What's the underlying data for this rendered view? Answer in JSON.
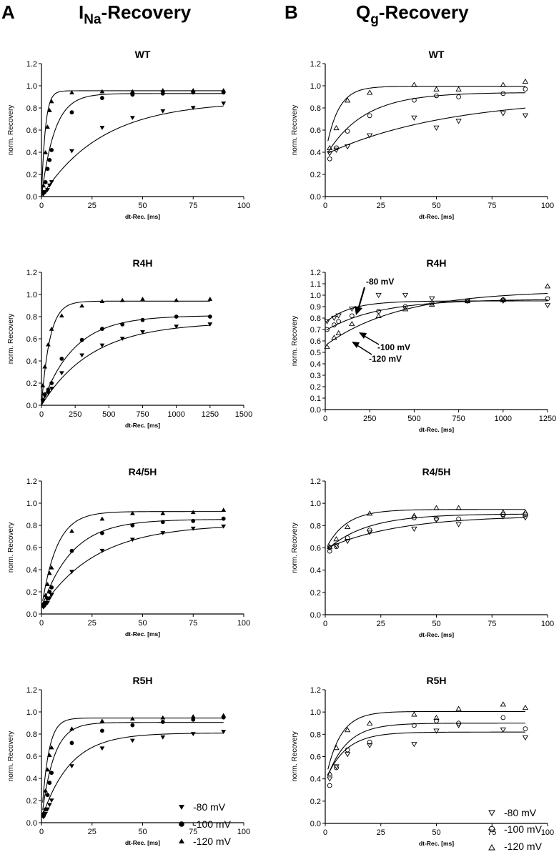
{
  "panels": {
    "A": {
      "letter": "A",
      "title_main": "I",
      "title_sub": "Na",
      "title_rest": "-Recovery"
    },
    "B": {
      "letter": "B",
      "title_main": "Q",
      "title_sub": "g",
      "title_rest": "-Recovery"
    }
  },
  "legend": {
    "left": [
      {
        "label": "-80 mV",
        "marker": "tri-down-filled"
      },
      {
        "label": "-100 mV",
        "marker": "circle-filled"
      },
      {
        "label": "-120 mV",
        "marker": "tri-up-filled"
      }
    ],
    "right": [
      {
        "label": "-80 mV",
        "marker": "tri-down-open"
      },
      {
        "label": "-100 mV",
        "marker": "circle-open"
      },
      {
        "label": "-120 mV",
        "marker": "tri-up-open"
      }
    ]
  },
  "annotations": [
    {
      "label": "-80 mV"
    },
    {
      "label": "-100 mV"
    },
    {
      "label": "-120 mV"
    }
  ],
  "chart_data": [
    {
      "id": "A-WT",
      "type": "scatter",
      "title": "WT",
      "xlabel": "dt-Rec.  [ms]",
      "ylabel": "norm. Recovery",
      "xlim": [
        0,
        100
      ],
      "ylim": [
        0,
        1.2
      ],
      "xticks": [
        0,
        25,
        50,
        75,
        100
      ],
      "yticks": [
        0.0,
        0.2,
        0.4,
        0.6,
        0.8,
        1.0,
        1.2
      ],
      "filled": true,
      "series": [
        {
          "name": "-80 mV",
          "marker": "tri-down",
          "x": [
            1,
            2,
            3,
            4,
            5,
            15,
            30,
            45,
            60,
            75,
            90
          ],
          "y": [
            0.02,
            0.04,
            0.06,
            0.1,
            0.13,
            0.41,
            0.62,
            0.71,
            0.77,
            0.8,
            0.84
          ],
          "fit": {
            "a": 0.86,
            "b": 0.0,
            "tau": 30
          }
        },
        {
          "name": "-100 mV",
          "marker": "circle",
          "x": [
            1,
            2,
            3,
            4,
            5,
            15,
            30,
            45,
            60,
            75,
            90
          ],
          "y": [
            0.04,
            0.13,
            0.25,
            0.33,
            0.42,
            0.76,
            0.89,
            0.92,
            0.93,
            0.94,
            0.94
          ],
          "fit": {
            "a": 0.93,
            "b": 0.0,
            "tau": 6.5
          }
        },
        {
          "name": "-120 mV",
          "marker": "tri-up",
          "x": [
            1,
            2,
            3,
            4,
            5,
            15,
            30,
            45,
            60,
            75,
            90
          ],
          "y": [
            0.1,
            0.4,
            0.63,
            0.78,
            0.86,
            0.94,
            0.95,
            0.95,
            0.96,
            0.96,
            0.96
          ],
          "fit": {
            "a": 0.955,
            "b": 0.0,
            "tau": 1.9
          }
        }
      ]
    },
    {
      "id": "B-WT",
      "type": "scatter",
      "title": "WT",
      "xlabel": "dt-Rec.  [ms]",
      "ylabel": "norm. Recovery",
      "xlim": [
        0,
        100
      ],
      "ylim": [
        0,
        1.2
      ],
      "xticks": [
        0,
        25,
        50,
        75,
        100
      ],
      "yticks": [
        0.0,
        0.2,
        0.4,
        0.6,
        0.8,
        1.0,
        1.2
      ],
      "filled": false,
      "series": [
        {
          "name": "-80 mV",
          "marker": "tri-down",
          "x": [
            2,
            5,
            10,
            20,
            40,
            50,
            60,
            80,
            90
          ],
          "y": [
            0.39,
            0.42,
            0.45,
            0.55,
            0.71,
            0.62,
            0.68,
            0.75,
            0.73
          ],
          "fit": {
            "a": 0.9,
            "b": 0.38,
            "tau": 55
          }
        },
        {
          "name": "-100 mV",
          "marker": "circle",
          "x": [
            2,
            5,
            10,
            20,
            40,
            50,
            60,
            80,
            90
          ],
          "y": [
            0.34,
            0.44,
            0.59,
            0.73,
            0.87,
            0.91,
            0.9,
            0.93,
            0.97
          ],
          "fit": {
            "a": 0.94,
            "b": 0.36,
            "tau": 17
          }
        },
        {
          "name": "-120 mV",
          "marker": "tri-up",
          "x": [
            2,
            5,
            10,
            20,
            40,
            50,
            60,
            80,
            90
          ],
          "y": [
            0.44,
            0.62,
            0.87,
            0.94,
            1.01,
            0.97,
            0.97,
            1.01,
            1.04
          ],
          "fit": {
            "a": 0.995,
            "b": 0.38,
            "tau": 5.5
          }
        }
      ]
    },
    {
      "id": "A-R4H",
      "type": "scatter",
      "title": "R4H",
      "xlabel": "dt-Rec.  [ms]",
      "ylabel": "norm. Recovery",
      "xlim": [
        0,
        1500
      ],
      "ylim": [
        0,
        1.2
      ],
      "xticks": [
        0,
        250,
        500,
        750,
        1000,
        1250,
        1500
      ],
      "yticks": [
        0.0,
        0.2,
        0.4,
        0.6,
        0.8,
        1.0,
        1.2
      ],
      "filled": true,
      "series": [
        {
          "name": "-80 mV",
          "marker": "tri-down",
          "x": [
            10,
            25,
            50,
            75,
            150,
            300,
            450,
            600,
            750,
            1000,
            1250
          ],
          "y": [
            0.04,
            0.08,
            0.11,
            0.15,
            0.29,
            0.45,
            0.54,
            0.6,
            0.66,
            0.71,
            0.73
          ],
          "fit": {
            "a": 0.75,
            "b": 0.0,
            "tau": 380
          }
        },
        {
          "name": "-100 mV",
          "marker": "circle",
          "x": [
            10,
            25,
            50,
            75,
            150,
            300,
            450,
            600,
            750,
            1000,
            1250
          ],
          "y": [
            0.05,
            0.1,
            0.14,
            0.2,
            0.42,
            0.59,
            0.69,
            0.73,
            0.77,
            0.8,
            0.8
          ],
          "fit": {
            "a": 0.81,
            "b": 0.0,
            "tau": 240
          }
        },
        {
          "name": "-120 mV",
          "marker": "tri-up",
          "x": [
            10,
            25,
            50,
            75,
            150,
            300,
            450,
            600,
            750,
            1000,
            1250
          ],
          "y": [
            0.18,
            0.35,
            0.55,
            0.69,
            0.81,
            0.9,
            0.94,
            0.95,
            0.96,
            0.95,
            0.96
          ],
          "fit": {
            "a": 0.94,
            "b": 0.0,
            "tau": 62
          }
        }
      ]
    },
    {
      "id": "B-R4H",
      "type": "scatter",
      "title": "R4H",
      "xlabel": "dt-Rec.  [ms]",
      "ylabel": "norm. Recovery",
      "xlim": [
        0,
        1250
      ],
      "ylim": [
        0,
        1.2
      ],
      "xticks": [
        0,
        250,
        500,
        750,
        1000,
        1250
      ],
      "yticks": [
        0.0,
        0.1,
        0.2,
        0.3,
        0.4,
        0.5,
        0.6,
        0.7,
        0.8,
        0.9,
        1.0,
        1.1,
        1.2
      ],
      "filled": false,
      "series": [
        {
          "name": "-80 mV",
          "marker": "tri-down",
          "x": [
            10,
            50,
            75,
            150,
            300,
            450,
            600,
            800,
            1000,
            1250
          ],
          "y": [
            0.77,
            0.8,
            0.82,
            0.88,
            1.0,
            1.0,
            0.97,
            0.95,
            0.95,
            0.91
          ],
          "fit": {
            "a": 0.95,
            "b": 0.76,
            "tau": 140
          }
        },
        {
          "name": "-100 mV",
          "marker": "circle",
          "x": [
            10,
            50,
            75,
            150,
            300,
            450,
            600,
            800,
            1000,
            1250
          ],
          "y": [
            0.7,
            0.74,
            0.77,
            0.82,
            0.86,
            0.9,
            0.93,
            0.95,
            0.96,
            0.97
          ],
          "fit": {
            "a": 0.965,
            "b": 0.69,
            "tau": 300
          }
        },
        {
          "name": "-120 mV",
          "marker": "tri-up",
          "x": [
            10,
            50,
            75,
            150,
            300,
            450,
            600,
            800,
            1000,
            1250
          ],
          "y": [
            0.55,
            0.63,
            0.67,
            0.75,
            0.82,
            0.88,
            0.92,
            0.95,
            0.96,
            1.08
          ],
          "fit": {
            "a": 1.04,
            "b": 0.56,
            "tau": 420
          }
        }
      ]
    },
    {
      "id": "A-R45H",
      "type": "scatter",
      "title": "R4/5H",
      "xlabel": "dt-Rec.  [ms]",
      "ylabel": "norm. Recovery",
      "xlim": [
        0,
        100
      ],
      "ylim": [
        0,
        1.2
      ],
      "xticks": [
        0,
        25,
        50,
        75,
        100
      ],
      "yticks": [
        0.0,
        0.2,
        0.4,
        0.6,
        0.8,
        1.0,
        1.2
      ],
      "filled": true,
      "series": [
        {
          "name": "-80 mV",
          "marker": "tri-down",
          "x": [
            1,
            2,
            3,
            4,
            5,
            15,
            30,
            45,
            60,
            75,
            90
          ],
          "y": [
            0.06,
            0.08,
            0.1,
            0.14,
            0.17,
            0.38,
            0.57,
            0.67,
            0.73,
            0.77,
            0.79
          ],
          "fit": {
            "a": 0.81,
            "b": 0.05,
            "tau": 27
          }
        },
        {
          "name": "-100 mV",
          "marker": "circle",
          "x": [
            1,
            2,
            3,
            4,
            5,
            15,
            30,
            45,
            60,
            75,
            90
          ],
          "y": [
            0.07,
            0.1,
            0.14,
            0.2,
            0.24,
            0.57,
            0.73,
            0.8,
            0.83,
            0.84,
            0.86
          ],
          "fit": {
            "a": 0.855,
            "b": 0.05,
            "tau": 15
          }
        },
        {
          "name": "-120 mV",
          "marker": "tri-up",
          "x": [
            1,
            2,
            3,
            4,
            5,
            15,
            30,
            45,
            60,
            75,
            90
          ],
          "y": [
            0.1,
            0.17,
            0.27,
            0.37,
            0.42,
            0.75,
            0.86,
            0.91,
            0.91,
            0.92,
            0.94
          ],
          "fit": {
            "a": 0.925,
            "b": 0.05,
            "tau": 7.5
          }
        }
      ]
    },
    {
      "id": "B-R45H",
      "type": "scatter",
      "title": "R4/5H",
      "xlabel": "dt-Rec.  [ms]",
      "ylabel": "norm. Recovery",
      "xlim": [
        0,
        100
      ],
      "ylim": [
        0,
        1.2
      ],
      "xticks": [
        0,
        25,
        50,
        75,
        100
      ],
      "yticks": [
        0.0,
        0.2,
        0.4,
        0.6,
        0.8,
        1.0,
        1.2
      ],
      "filled": false,
      "series": [
        {
          "name": "-80 mV",
          "marker": "tri-down",
          "x": [
            2,
            5,
            10,
            20,
            40,
            50,
            60,
            80,
            90
          ],
          "y": [
            0.6,
            0.62,
            0.66,
            0.74,
            0.77,
            0.85,
            0.81,
            0.88,
            0.87
          ],
          "fit": {
            "a": 0.89,
            "b": 0.59,
            "tau": 32
          }
        },
        {
          "name": "-100 mV",
          "marker": "circle",
          "x": [
            2,
            5,
            10,
            20,
            40,
            50,
            60,
            80,
            90
          ],
          "y": [
            0.57,
            0.61,
            0.69,
            0.76,
            0.87,
            0.86,
            0.86,
            0.9,
            0.9
          ],
          "fit": {
            "a": 0.905,
            "b": 0.57,
            "tau": 18
          }
        },
        {
          "name": "-120 mV",
          "marker": "tri-up",
          "x": [
            2,
            5,
            10,
            20,
            40,
            50,
            60,
            80,
            90
          ],
          "y": [
            0.61,
            0.68,
            0.79,
            0.91,
            0.89,
            0.96,
            0.96,
            0.92,
            0.92
          ],
          "fit": {
            "a": 0.945,
            "b": 0.58,
            "tau": 9
          }
        }
      ]
    },
    {
      "id": "A-R5H",
      "type": "scatter",
      "title": "R5H",
      "xlabel": "dt-Rec.  [ms]",
      "ylabel": "norm. Recovery",
      "xlim": [
        0,
        100
      ],
      "ylim": [
        0,
        1.2
      ],
      "xticks": [
        0,
        25,
        50,
        75,
        100
      ],
      "yticks": [
        0.0,
        0.2,
        0.4,
        0.6,
        0.8,
        1.0,
        1.2
      ],
      "filled": true,
      "series": [
        {
          "name": "-80 mV",
          "marker": "tri-down",
          "x": [
            1,
            2,
            3,
            4,
            5,
            15,
            30,
            45,
            60,
            75,
            90
          ],
          "y": [
            0.05,
            0.08,
            0.12,
            0.16,
            0.2,
            0.51,
            0.67,
            0.74,
            0.77,
            0.8,
            0.82
          ],
          "fit": {
            "a": 0.81,
            "b": 0.03,
            "tau": 14
          }
        },
        {
          "name": "-100 mV",
          "marker": "circle",
          "x": [
            1,
            2,
            3,
            4,
            5,
            15,
            30,
            45,
            60,
            75,
            90
          ],
          "y": [
            0.06,
            0.12,
            0.25,
            0.36,
            0.45,
            0.72,
            0.83,
            0.88,
            0.91,
            0.93,
            0.95
          ],
          "fit": {
            "a": 0.905,
            "b": 0.03,
            "tau": 6
          }
        },
        {
          "name": "-120 mV",
          "marker": "tri-up",
          "x": [
            1,
            2,
            3,
            4,
            5,
            15,
            30,
            45,
            60,
            75,
            90
          ],
          "y": [
            0.09,
            0.29,
            0.48,
            0.61,
            0.68,
            0.85,
            0.92,
            0.94,
            0.95,
            0.96,
            0.97
          ],
          "fit": {
            "a": 0.945,
            "b": 0.03,
            "tau": 3.3
          }
        }
      ]
    },
    {
      "id": "B-R5H",
      "type": "scatter",
      "title": "R5H",
      "xlabel": "dt-Rec.  [ms]",
      "ylabel": "norm. Recovery",
      "xlim": [
        0,
        100
      ],
      "ylim": [
        0,
        1.2
      ],
      "xticks": [
        0,
        25,
        50,
        75,
        100
      ],
      "yticks": [
        0.0,
        0.2,
        0.4,
        0.6,
        0.8,
        1.0,
        1.2
      ],
      "filled": false,
      "series": [
        {
          "name": "-80 mV",
          "marker": "tri-down",
          "x": [
            2,
            5,
            10,
            20,
            40,
            50,
            60,
            80,
            90
          ],
          "y": [
            0.4,
            0.51,
            0.62,
            0.7,
            0.71,
            0.83,
            0.88,
            0.84,
            0.77
          ],
          "fit": {
            "a": 0.82,
            "b": 0.38,
            "tau": 9
          }
        },
        {
          "name": "-100 mV",
          "marker": "circle",
          "x": [
            2,
            5,
            10,
            20,
            40,
            50,
            60,
            80,
            90
          ],
          "y": [
            0.34,
            0.5,
            0.66,
            0.73,
            0.88,
            0.92,
            0.9,
            0.95,
            0.85
          ],
          "fit": {
            "a": 0.9,
            "b": 0.36,
            "tau": 9
          }
        },
        {
          "name": "-120 mV",
          "marker": "tri-up",
          "x": [
            2,
            5,
            10,
            20,
            40,
            50,
            60,
            80,
            90
          ],
          "y": [
            0.45,
            0.68,
            0.84,
            0.9,
            0.98,
            0.95,
            1.03,
            1.07,
            1.04
          ],
          "fit": {
            "a": 1.005,
            "b": 0.38,
            "tau": 6.5
          }
        }
      ]
    }
  ]
}
